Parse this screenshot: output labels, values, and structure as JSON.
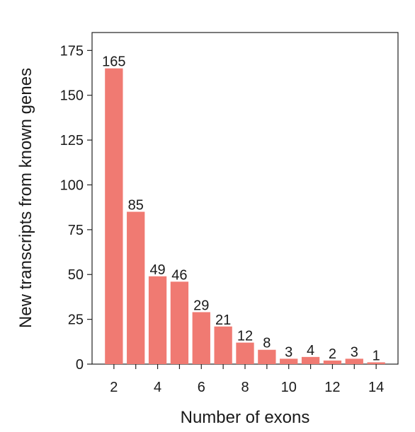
{
  "chart_data": {
    "type": "bar",
    "title": "",
    "xlabel": "Number of exons",
    "ylabel": "New transcripts from known genes",
    "categories": [
      2,
      3,
      4,
      5,
      6,
      7,
      8,
      9,
      10,
      11,
      12,
      13,
      14
    ],
    "values": [
      165,
      85,
      49,
      46,
      29,
      21,
      12,
      8,
      3,
      4,
      2,
      3,
      1
    ],
    "data_labels": [
      "165",
      "85",
      "49",
      "46",
      "29",
      "21",
      "12",
      "8",
      "3",
      "4",
      "2",
      "3",
      "1"
    ],
    "xticks": [
      2,
      4,
      6,
      8,
      10,
      12,
      14
    ],
    "xtick_labels": [
      "2",
      "4",
      "6",
      "8",
      "10",
      "12",
      "14"
    ],
    "xlim": [
      1,
      15
    ],
    "yticks": [
      0,
      25,
      50,
      75,
      100,
      125,
      150,
      175
    ],
    "ytick_labels": [
      "0",
      "25",
      "50",
      "75",
      "100",
      "125",
      "150",
      "175"
    ],
    "ylim": [
      0,
      185
    ],
    "bar_color": "#f07a72",
    "grid": false,
    "legend": "none"
  }
}
